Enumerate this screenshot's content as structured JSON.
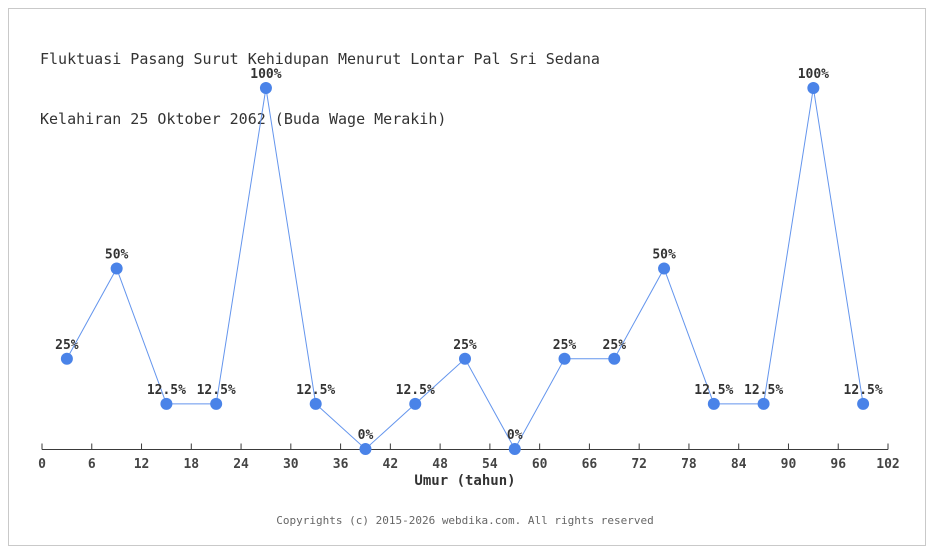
{
  "page": {
    "title_line1": "Fluktuasi Pasang Surut Kehidupan Menurut Lontar Pal Sri Sedana",
    "title_line2": "Kelahiran 25 Oktober 2062 (Buda Wage Merakih)",
    "footer": "Copyrights (c) 2015-2026 webdika.com. All rights reserved"
  },
  "chart_data": {
    "type": "line",
    "title": "Fluktuasi Pasang Surut Kehidupan Menurut Lontar Pal Sri Sedana Kelahiran 25 Oktober 2062 (Buda Wage Merakih)",
    "xlabel": "Umur (tahun)",
    "ylabel": "",
    "x": [
      3,
      9,
      15,
      21,
      27,
      33,
      39,
      45,
      51,
      57,
      63,
      69,
      75,
      81,
      87,
      93,
      99
    ],
    "values": [
      25,
      50,
      12.5,
      12.5,
      100,
      12.5,
      0,
      12.5,
      25,
      0,
      25,
      25,
      50,
      12.5,
      12.5,
      100,
      12.5
    ],
    "point_labels": [
      "25%",
      "50%",
      "12.5%",
      "12.5%",
      "100%",
      "12.5%",
      "0%",
      "12.5%",
      "25%",
      "0%",
      "25%",
      "25%",
      "50%",
      "12.5%",
      "12.5%",
      "100%",
      "12.5%"
    ],
    "x_ticks": [
      0,
      6,
      12,
      18,
      24,
      30,
      36,
      42,
      48,
      54,
      60,
      66,
      72,
      78,
      84,
      90,
      96,
      102
    ],
    "xlim": [
      0,
      102
    ],
    "ylim": [
      0,
      100
    ],
    "grid": false,
    "legend": false,
    "colors": {
      "line": "#6495ed",
      "marker": "#4a83e8",
      "axis": "#3a3a3a",
      "tick_label": "#444444",
      "data_label": "#333333"
    }
  }
}
